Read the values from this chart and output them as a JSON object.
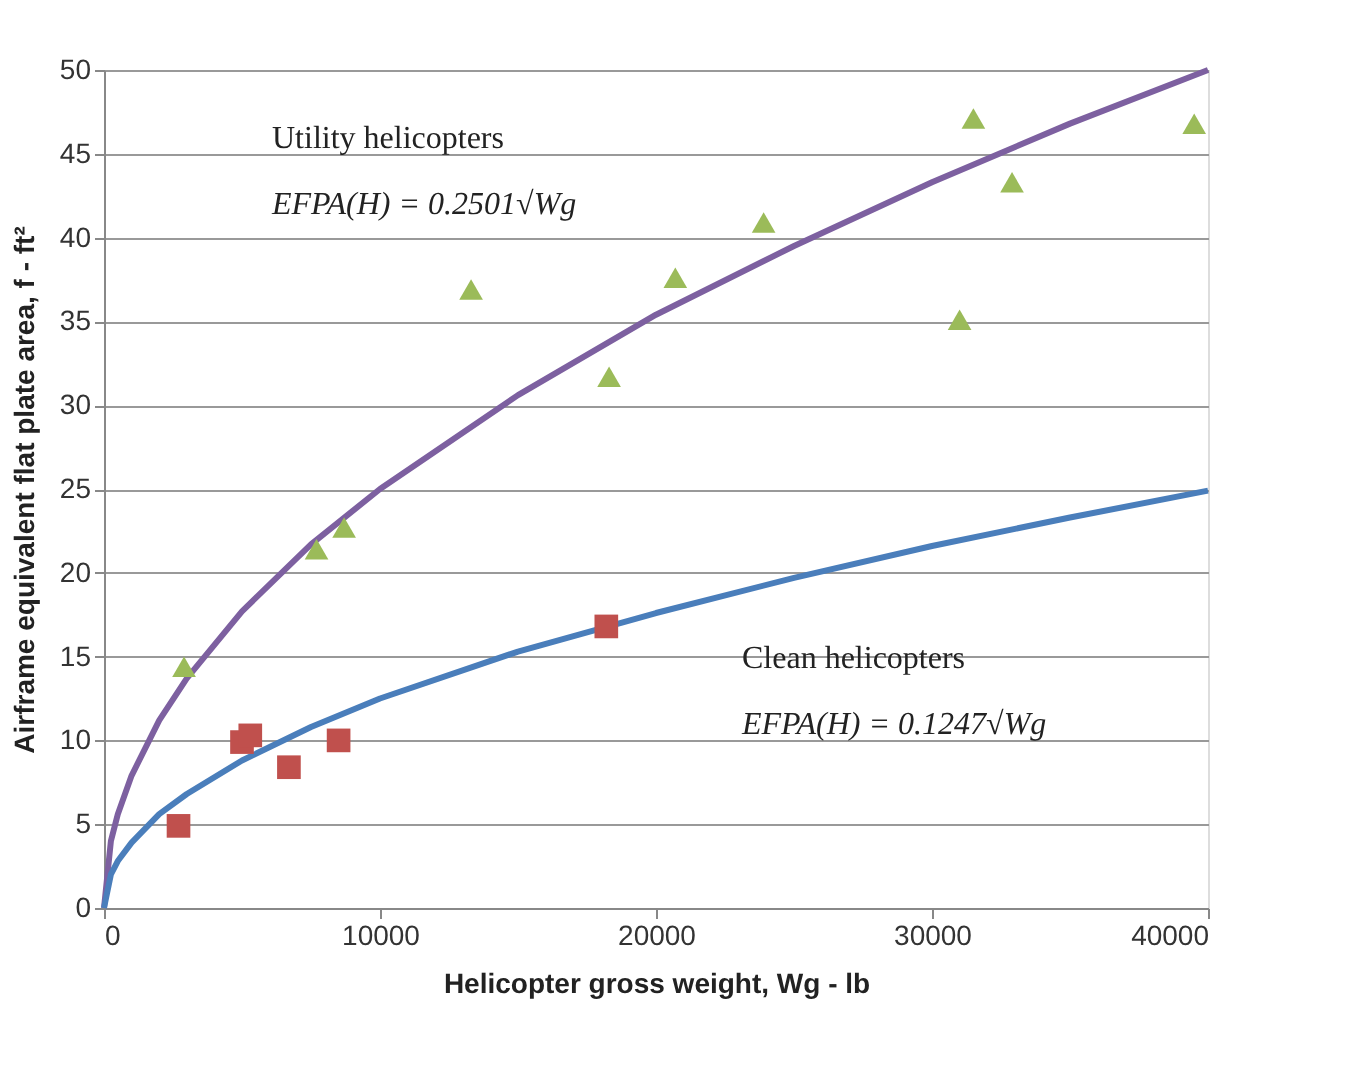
{
  "chart_data": {
    "type": "scatter",
    "xlabel": "Helicopter gross weight, Wg - lb",
    "ylabel": "Airframe equivalent flat plate area, f - ft²",
    "xlim": [
      0,
      40000
    ],
    "xticks": [
      0,
      10000,
      20000,
      30000,
      40000
    ],
    "ylim": [
      0,
      50
    ],
    "yticks": [
      0,
      5,
      10,
      15,
      20,
      25,
      30,
      35,
      40,
      45,
      50
    ],
    "grid": "y",
    "annotations": [
      "Utility helicopters",
      "EFPA(H) = 0.2501√Wg",
      "Clean helicopters",
      "EFPA(H) = 0.1247√Wg"
    ],
    "series": [
      {
        "type": "line",
        "color": "#7d60a0",
        "marker": "none",
        "line_style": "solid",
        "x": [
          0,
          250,
          500,
          1000,
          2000,
          3000,
          5000,
          7500,
          10000,
          15000,
          20000,
          25000,
          30000,
          35000,
          40000
        ],
        "values": [
          0,
          4.0,
          5.6,
          7.9,
          11.2,
          13.7,
          17.7,
          21.7,
          25.0,
          30.6,
          35.4,
          39.5,
          43.3,
          46.8,
          50.0
        ]
      },
      {
        "type": "line",
        "color": "#4a7ebb",
        "marker": "none",
        "line_style": "solid",
        "x": [
          0,
          250,
          500,
          1000,
          2000,
          3000,
          5000,
          7500,
          10000,
          15000,
          20000,
          25000,
          30000,
          35000,
          40000
        ],
        "values": [
          0,
          2.0,
          2.8,
          3.9,
          5.6,
          6.8,
          8.8,
          10.8,
          12.5,
          15.3,
          17.6,
          19.7,
          21.6,
          23.3,
          24.9
        ]
      },
      {
        "color": "#9bbb59",
        "marker": "triangle",
        "x": [
          2900,
          7700,
          8700,
          13300,
          18300,
          20700,
          23900,
          31000,
          31500,
          32900,
          39500
        ],
        "values": [
          14.4,
          21.4,
          22.7,
          36.9,
          31.7,
          37.6,
          40.9,
          35.1,
          47.1,
          43.3,
          46.8
        ]
      },
      {
        "color": "#c0504d",
        "marker": "square",
        "x": [
          2700,
          5000,
          5300,
          6700,
          8500,
          18200
        ],
        "values": [
          4.9,
          9.9,
          10.3,
          8.4,
          10.0,
          16.8
        ]
      }
    ]
  }
}
